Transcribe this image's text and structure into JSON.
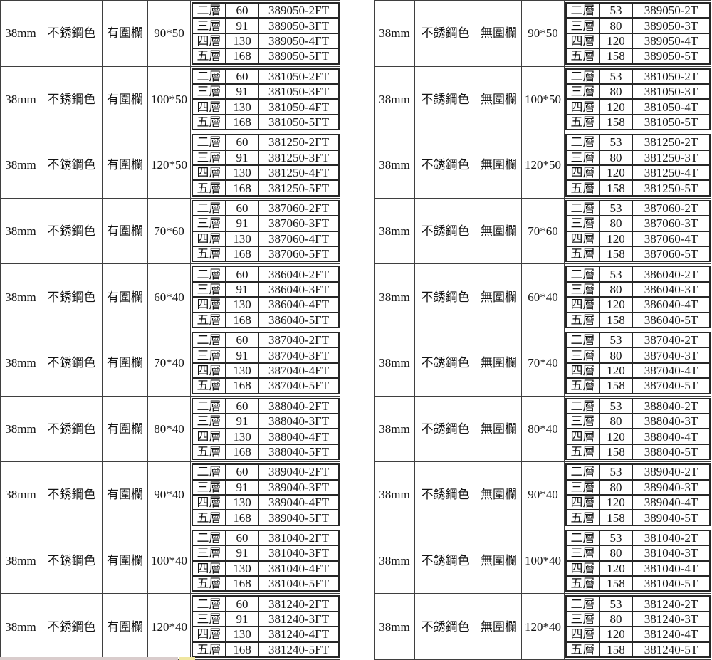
{
  "tables": [
    {
      "side": "left",
      "rows": [
        {
          "thickness": "38mm",
          "color": "不銹鋼色",
          "fence": "有圍欄",
          "size": "90*50",
          "tiers": [
            {
              "tier": "二層",
              "value": "60",
              "code": "389050-2FT"
            },
            {
              "tier": "三層",
              "value": "91",
              "code": "389050-3FT"
            },
            {
              "tier": "四層",
              "value": "130",
              "code": "389050-4FT"
            },
            {
              "tier": "五層",
              "value": "168",
              "code": "389050-5FT"
            }
          ]
        },
        {
          "thickness": "38mm",
          "color": "不銹鋼色",
          "fence": "有圍欄",
          "size": "100*50",
          "tiers": [
            {
              "tier": "二層",
              "value": "60",
              "code": "381050-2FT"
            },
            {
              "tier": "三層",
              "value": "91",
              "code": "381050-3FT"
            },
            {
              "tier": "四層",
              "value": "130",
              "code": "381050-4FT"
            },
            {
              "tier": "五層",
              "value": "168",
              "code": "381050-5FT"
            }
          ]
        },
        {
          "thickness": "38mm",
          "color": "不銹鋼色",
          "fence": "有圍欄",
          "size": "120*50",
          "tiers": [
            {
              "tier": "二層",
              "value": "60",
              "code": "381250-2FT"
            },
            {
              "tier": "三層",
              "value": "91",
              "code": "381250-3FT"
            },
            {
              "tier": "四層",
              "value": "130",
              "code": "381250-4FT"
            },
            {
              "tier": "五層",
              "value": "168",
              "code": "381250-5FT"
            }
          ]
        },
        {
          "thickness": "38mm",
          "color": "不銹鋼色",
          "fence": "有圍欄",
          "size": "70*60",
          "tiers": [
            {
              "tier": "二層",
              "value": "60",
              "code": "387060-2FT"
            },
            {
              "tier": "三層",
              "value": "91",
              "code": "387060-3FT"
            },
            {
              "tier": "四層",
              "value": "130",
              "code": "387060-4FT"
            },
            {
              "tier": "五層",
              "value": "168",
              "code": "387060-5FT"
            }
          ]
        },
        {
          "thickness": "38mm",
          "color": "不銹鋼色",
          "fence": "有圍欄",
          "size": "60*40",
          "tiers": [
            {
              "tier": "二層",
              "value": "60",
              "code": "386040-2FT"
            },
            {
              "tier": "三層",
              "value": "91",
              "code": "386040-3FT"
            },
            {
              "tier": "四層",
              "value": "130",
              "code": "386040-4FT"
            },
            {
              "tier": "五層",
              "value": "168",
              "code": "386040-5FT"
            }
          ]
        },
        {
          "thickness": "38mm",
          "color": "不銹鋼色",
          "fence": "有圍欄",
          "size": "70*40",
          "tiers": [
            {
              "tier": "二層",
              "value": "60",
              "code": "387040-2FT"
            },
            {
              "tier": "三層",
              "value": "91",
              "code": "387040-3FT"
            },
            {
              "tier": "四層",
              "value": "130",
              "code": "387040-4FT"
            },
            {
              "tier": "五層",
              "value": "168",
              "code": "387040-5FT"
            }
          ]
        },
        {
          "thickness": "38mm",
          "color": "不銹鋼色",
          "fence": "有圍欄",
          "size": "80*40",
          "tiers": [
            {
              "tier": "二層",
              "value": "60",
              "code": "388040-2FT"
            },
            {
              "tier": "三層",
              "value": "91",
              "code": "388040-3FT"
            },
            {
              "tier": "四層",
              "value": "130",
              "code": "388040-4FT"
            },
            {
              "tier": "五層",
              "value": "168",
              "code": "388040-5FT"
            }
          ]
        },
        {
          "thickness": "38mm",
          "color": "不銹鋼色",
          "fence": "有圍欄",
          "size": "90*40",
          "tiers": [
            {
              "tier": "二層",
              "value": "60",
              "code": "389040-2FT"
            },
            {
              "tier": "三層",
              "value": "91",
              "code": "389040-3FT"
            },
            {
              "tier": "四層",
              "value": "130",
              "code": "389040-4FT"
            },
            {
              "tier": "五層",
              "value": "168",
              "code": "389040-5FT"
            }
          ]
        },
        {
          "thickness": "38mm",
          "color": "不銹鋼色",
          "fence": "有圍欄",
          "size": "100*40",
          "tiers": [
            {
              "tier": "二層",
              "value": "60",
              "code": "381040-2FT"
            },
            {
              "tier": "三層",
              "value": "91",
              "code": "381040-3FT"
            },
            {
              "tier": "四層",
              "value": "130",
              "code": "381040-4FT"
            },
            {
              "tier": "五層",
              "value": "168",
              "code": "381040-5FT"
            }
          ]
        },
        {
          "thickness": "38mm",
          "color": "不銹鋼色",
          "fence": "有圍欄",
          "size": "120*40",
          "tiers": [
            {
              "tier": "二層",
              "value": "60",
              "code": "381240-2FT"
            },
            {
              "tier": "三層",
              "value": "91",
              "code": "381240-3FT"
            },
            {
              "tier": "四層",
              "value": "130",
              "code": "381240-4FT"
            },
            {
              "tier": "五層",
              "value": "168",
              "code": "381240-5FT"
            }
          ]
        }
      ]
    },
    {
      "side": "right",
      "rows": [
        {
          "thickness": "38mm",
          "color": "不銹鋼色",
          "fence": "無圍欄",
          "size": "90*50",
          "tiers": [
            {
              "tier": "二層",
              "value": "53",
              "code": "389050-2T"
            },
            {
              "tier": "三層",
              "value": "80",
              "code": "389050-3T"
            },
            {
              "tier": "四層",
              "value": "120",
              "code": "389050-4T"
            },
            {
              "tier": "五層",
              "value": "158",
              "code": "389050-5T"
            }
          ]
        },
        {
          "thickness": "38mm",
          "color": "不銹鋼色",
          "fence": "無圍欄",
          "size": "100*50",
          "tiers": [
            {
              "tier": "二層",
              "value": "53",
              "code": "381050-2T"
            },
            {
              "tier": "三層",
              "value": "80",
              "code": "381050-3T"
            },
            {
              "tier": "四層",
              "value": "120",
              "code": "381050-4T"
            },
            {
              "tier": "五層",
              "value": "158",
              "code": "381050-5T"
            }
          ]
        },
        {
          "thickness": "38mm",
          "color": "不銹鋼色",
          "fence": "無圍欄",
          "size": "120*50",
          "tiers": [
            {
              "tier": "二層",
              "value": "53",
              "code": "381250-2T"
            },
            {
              "tier": "三層",
              "value": "80",
              "code": "381250-3T"
            },
            {
              "tier": "四層",
              "value": "120",
              "code": "381250-4T"
            },
            {
              "tier": "五層",
              "value": "158",
              "code": "381250-5T"
            }
          ]
        },
        {
          "thickness": "38mm",
          "color": "不銹鋼色",
          "fence": "無圍欄",
          "size": "70*60",
          "tiers": [
            {
              "tier": "二層",
              "value": "53",
              "code": "387060-2T"
            },
            {
              "tier": "三層",
              "value": "80",
              "code": "387060-3T"
            },
            {
              "tier": "四層",
              "value": "120",
              "code": "387060-4T"
            },
            {
              "tier": "五層",
              "value": "158",
              "code": "387060-5T"
            }
          ]
        },
        {
          "thickness": "38mm",
          "color": "不銹鋼色",
          "fence": "無圍欄",
          "size": "60*40",
          "tiers": [
            {
              "tier": "二層",
              "value": "53",
              "code": "386040-2T"
            },
            {
              "tier": "三層",
              "value": "80",
              "code": "386040-3T"
            },
            {
              "tier": "四層",
              "value": "120",
              "code": "386040-4T"
            },
            {
              "tier": "五層",
              "value": "158",
              "code": "386040-5T"
            }
          ]
        },
        {
          "thickness": "38mm",
          "color": "不銹鋼色",
          "fence": "無圍欄",
          "size": "70*40",
          "tiers": [
            {
              "tier": "二層",
              "value": "53",
              "code": "387040-2T"
            },
            {
              "tier": "三層",
              "value": "80",
              "code": "387040-3T"
            },
            {
              "tier": "四層",
              "value": "120",
              "code": "387040-4T"
            },
            {
              "tier": "五層",
              "value": "158",
              "code": "387040-5T"
            }
          ]
        },
        {
          "thickness": "38mm",
          "color": "不銹鋼色",
          "fence": "無圍欄",
          "size": "80*40",
          "tiers": [
            {
              "tier": "二層",
              "value": "53",
              "code": "388040-2T"
            },
            {
              "tier": "三層",
              "value": "80",
              "code": "388040-3T"
            },
            {
              "tier": "四層",
              "value": "120",
              "code": "388040-4T"
            },
            {
              "tier": "五層",
              "value": "158",
              "code": "388040-5T"
            }
          ]
        },
        {
          "thickness": "38mm",
          "color": "不銹鋼色",
          "fence": "無圍欄",
          "size": "90*40",
          "tiers": [
            {
              "tier": "二層",
              "value": "53",
              "code": "389040-2T"
            },
            {
              "tier": "三層",
              "value": "80",
              "code": "389040-3T"
            },
            {
              "tier": "四層",
              "value": "120",
              "code": "389040-4T"
            },
            {
              "tier": "五層",
              "value": "158",
              "code": "389040-5T"
            }
          ]
        },
        {
          "thickness": "38mm",
          "color": "不銹鋼色",
          "fence": "無圍欄",
          "size": "100*40",
          "tiers": [
            {
              "tier": "二層",
              "value": "53",
              "code": "381040-2T"
            },
            {
              "tier": "三層",
              "value": "80",
              "code": "381040-3T"
            },
            {
              "tier": "四層",
              "value": "120",
              "code": "381040-4T"
            },
            {
              "tier": "五層",
              "value": "158",
              "code": "381040-5T"
            }
          ]
        },
        {
          "thickness": "38mm",
          "color": "不銹鋼色",
          "fence": "無圍欄",
          "size": "120*40",
          "tiers": [
            {
              "tier": "二層",
              "value": "53",
              "code": "381240-2T"
            },
            {
              "tier": "三層",
              "value": "80",
              "code": "381240-3T"
            },
            {
              "tier": "四層",
              "value": "120",
              "code": "381240-4T"
            },
            {
              "tier": "五層",
              "value": "158",
              "code": "381240-5T"
            }
          ]
        }
      ]
    }
  ],
  "colors": {
    "border_main": "#3f3f3f",
    "border_sub": "#262626",
    "text": "#141414",
    "background": "#ffffff"
  }
}
